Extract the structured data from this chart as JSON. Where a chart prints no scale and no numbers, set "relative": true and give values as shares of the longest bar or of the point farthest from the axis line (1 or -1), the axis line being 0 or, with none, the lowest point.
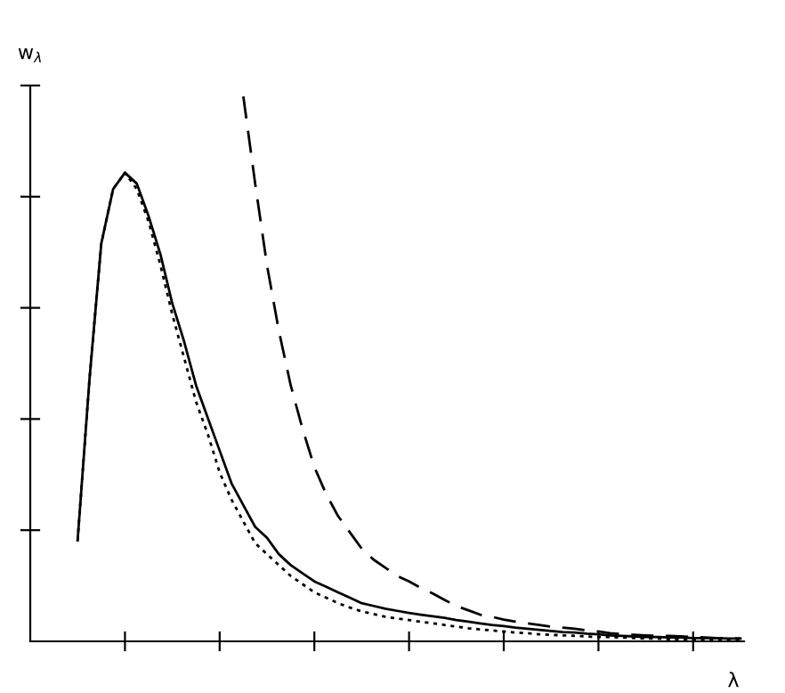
{
  "chart_data": {
    "type": "line",
    "relative": true,
    "xlabel": "λ",
    "ylabel": "w$_{λ}$",
    "tick_labels": false,
    "categories": [
      null,
      null,
      null,
      null,
      null,
      null,
      null,
      null,
      null,
      null,
      null,
      null,
      null,
      null,
      null,
      null,
      null,
      null,
      null,
      null,
      null,
      null,
      null,
      null,
      null,
      null,
      null,
      null,
      null,
      null,
      null,
      null,
      null,
      null,
      null,
      null,
      null,
      null,
      null,
      null,
      null,
      null,
      null,
      null,
      null,
      null,
      null,
      null,
      null,
      null,
      null,
      null,
      null,
      null,
      null,
      null,
      null,
      null,
      null,
      null,
      null
    ],
    "series": [
      {
        "color": "#000000",
        "line_style": "solid",
        "values": [
          null,
          null,
          null,
          null,
          0.185,
          0.48,
          0.73,
          0.83,
          0.86,
          0.84,
          0.78,
          0.71,
          0.62,
          0.55,
          0.47,
          0.41,
          0.35,
          0.29,
          0.25,
          0.21,
          0.19,
          0.16,
          0.14,
          0.125,
          0.11,
          0.1,
          0.09,
          0.08,
          0.07,
          0.065,
          0.06,
          0.056,
          0.052,
          0.049,
          0.046,
          0.043,
          0.039,
          0.036,
          0.033,
          0.03,
          0.028,
          0.025,
          0.023,
          0.021,
          0.019,
          0.017,
          0.016,
          0.014,
          0.013,
          0.011,
          0.01,
          0.009,
          0.008,
          0.008,
          0.007,
          0.007,
          0.006,
          0.006,
          0.006,
          0.005,
          0.005
        ]
      },
      {
        "color": "#000000",
        "line_style": "dotted",
        "values": [
          null,
          null,
          null,
          null,
          0.185,
          0.48,
          0.73,
          0.83,
          0.86,
          0.83,
          0.77,
          0.69,
          0.6,
          0.52,
          0.44,
          0.38,
          0.31,
          0.26,
          0.22,
          0.18,
          0.16,
          0.14,
          0.12,
          0.105,
          0.09,
          0.08,
          0.07,
          0.062,
          0.055,
          0.05,
          0.045,
          0.042,
          0.039,
          0.036,
          0.033,
          0.03,
          0.027,
          0.024,
          0.022,
          0.02,
          0.018,
          0.016,
          0.015,
          0.013,
          0.012,
          0.011,
          0.01,
          0.009,
          0.008,
          0.008,
          0.007,
          0.006,
          0.005,
          0.005,
          0.004,
          0.004,
          0.004,
          0.003,
          0.003,
          0.003,
          0.003
        ]
      },
      {
        "color": "#000000",
        "line_style": "dashed",
        "values": [
          null,
          null,
          null,
          null,
          null,
          null,
          null,
          null,
          null,
          null,
          null,
          null,
          null,
          null,
          null,
          null,
          null,
          null,
          1.0,
          0.84,
          0.69,
          0.57,
          0.47,
          0.39,
          0.32,
          0.27,
          0.23,
          0.2,
          0.17,
          0.15,
          0.135,
          0.12,
          0.11,
          0.098,
          0.088,
          0.076,
          0.065,
          0.057,
          0.049,
          0.045,
          0.04,
          0.036,
          0.033,
          0.03,
          0.027,
          0.025,
          0.023,
          0.02,
          0.018,
          0.015,
          0.013,
          0.012,
          0.011,
          0.01,
          0.01,
          0.009,
          0.008,
          0.007,
          0.006,
          0.006,
          0.005
        ]
      }
    ]
  }
}
